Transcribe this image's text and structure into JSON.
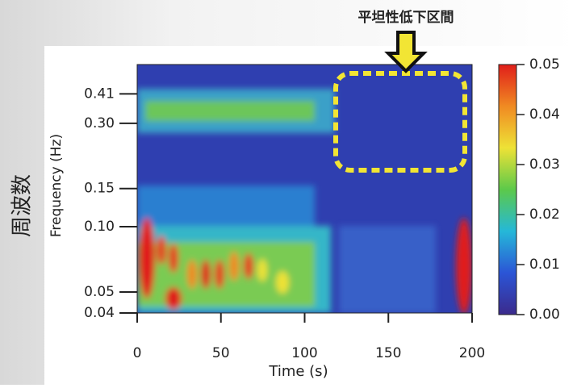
{
  "chart_data": {
    "type": "heatmap",
    "annotation": "平坦性低下区間",
    "side_label": "周波数",
    "xlabel": "Time (s)",
    "ylabel": "Frequency (Hz)",
    "xlim": [
      0,
      200
    ],
    "xticks": [
      0,
      50,
      100,
      150,
      200
    ],
    "ylim": [
      0.04,
      0.56
    ],
    "yscale": "log",
    "yticks": [
      0.04,
      0.05,
      {
        "value": 0.1,
        "label": "0.10"
      },
      0.15,
      {
        "value": 0.3,
        "label": "0.30"
      },
      0.41
    ],
    "colorbar": {
      "lim": [
        0,
        0.05
      ],
      "ticks": [
        {
          "value": 0,
          "label": "0.00"
        },
        0.01,
        0.02,
        0.03,
        0.04,
        0.05
      ],
      "colors": [
        "#3b2a8c",
        "#2b55d6",
        "#25b8d8",
        "#5cc94a",
        "#eee236",
        "#f08a22",
        "#e01e1a"
      ]
    }
  }
}
